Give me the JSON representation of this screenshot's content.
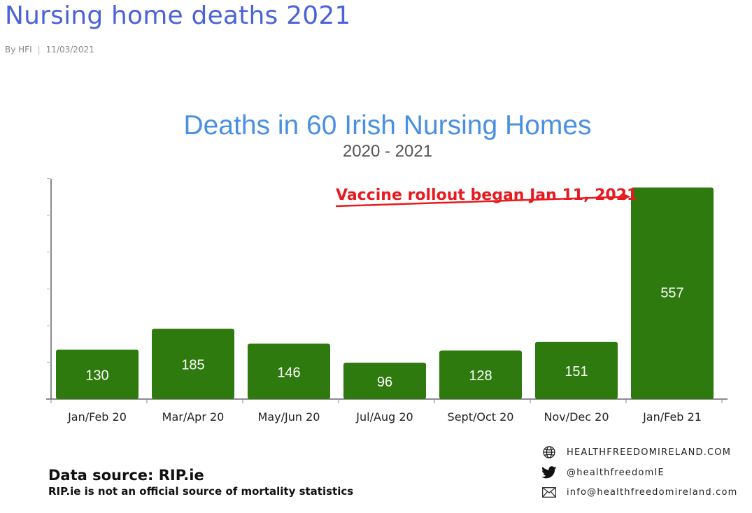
{
  "post": {
    "title": "Nursing home deaths 2021",
    "author": "By HFI",
    "date": "11/03/2021"
  },
  "chart_data": {
    "type": "bar",
    "title": "Deaths in 60 Irish Nursing Homes",
    "subtitle": "2020 - 2021",
    "categories": [
      "Jan/Feb 20",
      "Mar/Apr 20",
      "May/Jun 20",
      "Jul/Aug 20",
      "Sept/Oct 20",
      "Nov/Dec 20",
      "Jan/Feb 21"
    ],
    "values": [
      130,
      185,
      146,
      96,
      128,
      151,
      557
    ],
    "ylim": [
      0,
      600
    ],
    "grid": false,
    "bar_color": "#2e7a0e",
    "data_labels": true,
    "annotation": {
      "text": "Vaccine rollout began Jan 11, 2021",
      "color": "#e8191f",
      "points_to": "Jan/Feb 21"
    }
  },
  "source": {
    "title": "Data source: RIP.ie",
    "note": "RIP.ie is not an official source of mortality statistics"
  },
  "contact": {
    "website": "HEALTHFREEDOMIRELAND.COM",
    "twitter": "@healthfreedomIE",
    "email": "info@healthfreedomireland.com",
    "icons": [
      "globe-icon",
      "twitter-icon",
      "mail-icon"
    ]
  }
}
